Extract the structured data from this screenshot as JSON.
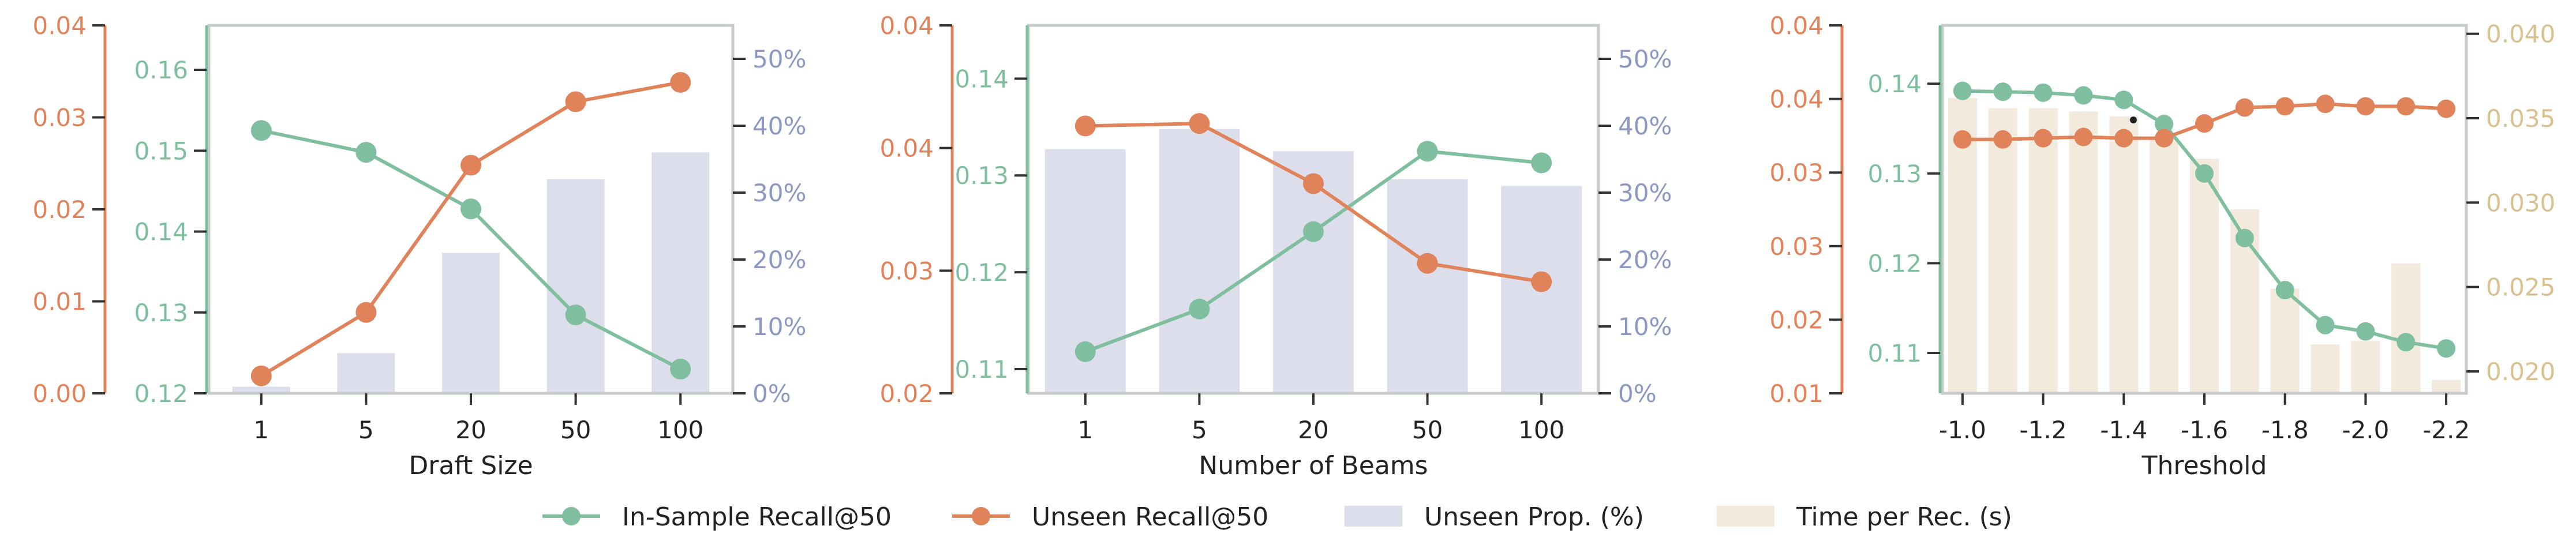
{
  "colors": {
    "green": "#7fbf9f",
    "orange": "#e0835a",
    "bar_purple": "#dcdeeb",
    "bar_tan": "#f1eadd",
    "axis_purple": "#8d97c2",
    "axis_tan": "#d8c18e",
    "frame": "#c7cbc9",
    "black": "#222222"
  },
  "legend": {
    "items": [
      {
        "label": "In-Sample Recall@50",
        "kind": "line",
        "color": "#7fbf9f"
      },
      {
        "label": "Unseen Recall@50",
        "kind": "line",
        "color": "#e0835a"
      },
      {
        "label": "Unseen Prop. (%)",
        "kind": "bar",
        "color": "#dcdeeb"
      },
      {
        "label": "Time per Rec. (s)",
        "kind": "bar",
        "color": "#f1eadd"
      }
    ]
  },
  "chart_data": [
    {
      "type": "bar",
      "xlabel": "Draft Size",
      "categories": [
        "1",
        "5",
        "20",
        "50",
        "100"
      ],
      "series": [
        {
          "name": "In-Sample Recall@50",
          "type": "line",
          "axis": "inner",
          "values": [
            0.1525,
            0.1498,
            0.1428,
            0.1297,
            0.123
          ]
        },
        {
          "name": "Unseen Recall@50",
          "type": "line",
          "axis": "outer",
          "values": [
            0.0019,
            0.0088,
            0.0248,
            0.0317,
            0.0338
          ]
        },
        {
          "name": "Unseen Prop. (%)",
          "type": "bar",
          "axis": "right",
          "values": [
            1,
            6,
            21,
            32,
            36
          ]
        }
      ],
      "outer_axis": {
        "ylim": [
          0.0,
          0.04
        ],
        "ticks": [
          "0.00",
          "0.01",
          "0.02",
          "0.03",
          "0.04"
        ]
      },
      "inner_axis": {
        "ylim": [
          0.12,
          0.1655
        ],
        "ticks": [
          "0.12",
          "0.13",
          "0.14",
          "0.15",
          "0.16"
        ]
      },
      "right_axis": {
        "ylim": [
          0,
          55
        ],
        "ticks": [
          "0%",
          "10%",
          "20%",
          "30%",
          "40%",
          "50%"
        ]
      }
    },
    {
      "type": "bar",
      "xlabel": "Number of Beams",
      "categories": [
        "1",
        "5",
        "20",
        "50",
        "100"
      ],
      "series": [
        {
          "name": "In-Sample Recall@50",
          "type": "line",
          "axis": "inner",
          "values": [
            0.1118,
            0.1162,
            0.1242,
            0.1325,
            0.1313
          ]
        },
        {
          "name": "Unseen Recall@50",
          "type": "line",
          "axis": "outer",
          "values": [
            0.0418,
            0.042,
            0.0371,
            0.0306,
            0.0291
          ]
        },
        {
          "name": "Unseen Prop. (%)",
          "type": "bar",
          "axis": "right",
          "values": [
            36.5,
            39.5,
            36.2,
            32,
            31
          ]
        }
      ],
      "outer_axis": {
        "ylim": [
          0.02,
          0.05
        ],
        "ticks": [
          "0.02",
          "0.03",
          "0.04",
          "0.04"
        ]
      },
      "inner_axis": {
        "ylim": [
          0.1075,
          0.1455
        ],
        "ticks": [
          "0.11",
          "0.12",
          "0.13",
          "0.14"
        ]
      },
      "right_axis": {
        "ylim": [
          0,
          55
        ],
        "ticks": [
          "0%",
          "10%",
          "20%",
          "30%",
          "40%",
          "50%"
        ]
      }
    },
    {
      "type": "bar",
      "xlabel": "Threshold",
      "categories": [
        "-1.0",
        "-1.1",
        "-1.2",
        "-1.3",
        "-1.4",
        "-1.5",
        "-1.6",
        "-1.7",
        "-1.8",
        "-1.9",
        "-2.0",
        "-2.1",
        "-2.2"
      ],
      "tick_labels": [
        "-1.0",
        "-1.2",
        "-1.4",
        "-1.6",
        "-1.8",
        "-2.0",
        "-2.2"
      ],
      "series": [
        {
          "name": "In-Sample Recall@50",
          "type": "line",
          "axis": "inner",
          "values": [
            0.1392,
            0.1391,
            0.139,
            0.1387,
            0.1382,
            0.1355,
            0.13,
            0.1228,
            0.117,
            0.1131,
            0.1124,
            0.1112,
            0.1105
          ]
        },
        {
          "name": "Unseen Recall@50",
          "type": "line",
          "axis": "outer",
          "values": [
            0.0307,
            0.0307,
            0.0308,
            0.0309,
            0.0308,
            0.0308,
            0.032,
            0.0333,
            0.0334,
            0.0336,
            0.0334,
            0.0334,
            0.0332
          ]
        },
        {
          "name": "Time per Rec. (s)",
          "type": "bar",
          "axis": "right",
          "values": [
            0.0362,
            0.0356,
            0.0356,
            0.0354,
            0.0351,
            0.0338,
            0.0326,
            0.0296,
            0.0249,
            0.0216,
            0.0218,
            0.0264,
            0.0195
          ]
        }
      ],
      "outer_axis": {
        "ylim": [
          0.01,
          0.04
        ],
        "ticks": [
          "0.01",
          "0.02",
          "0.03",
          "0.03",
          "0.04",
          "0.04"
        ]
      },
      "inner_axis": {
        "ylim": [
          0.1055,
          0.1465
        ],
        "ticks": [
          "0.11",
          "0.12",
          "0.13",
          "0.14"
        ]
      },
      "right_axis": {
        "ylim": [
          0.0187,
          0.0405
        ],
        "ticks": [
          "0.020",
          "0.025",
          "0.030",
          "0.035",
          "0.040"
        ]
      }
    }
  ]
}
